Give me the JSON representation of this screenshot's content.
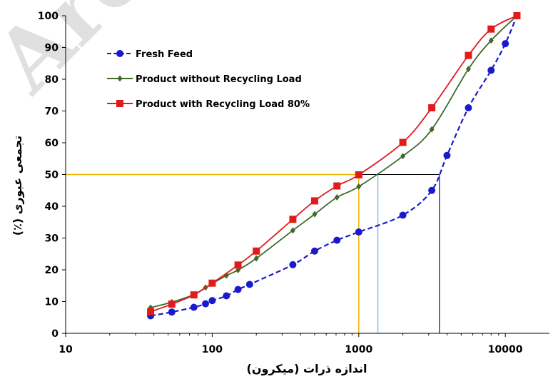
{
  "watermark": "Arc",
  "chart_data": {
    "type": "line",
    "title": "",
    "xlabel": "اندازه ذرات (میکرون)",
    "ylabel": "تجمعی عبوری (٪)",
    "x_scale": "log",
    "xlim": [
      10,
      20000
    ],
    "ylim": [
      0,
      100
    ],
    "x_ticks": [
      10,
      100,
      1000,
      10000
    ],
    "y_ticks": [
      0,
      10,
      20,
      30,
      40,
      50,
      60,
      70,
      80,
      90,
      100
    ],
    "legend_position": "top-left",
    "series": [
      {
        "name": "Fresh Feed",
        "color": "#1a1acc",
        "line_style": "dashed",
        "marker": "circle",
        "points": [
          [
            38,
            5.5
          ],
          [
            53,
            6.7
          ],
          [
            75,
            8.2
          ],
          [
            90,
            9.3
          ],
          [
            100,
            10.3
          ],
          [
            125,
            11.8
          ],
          [
            150,
            13.8
          ],
          [
            180,
            15.4
          ],
          [
            355,
            21.6
          ],
          [
            500,
            25.9
          ],
          [
            710,
            29.3
          ],
          [
            1000,
            31.9
          ],
          [
            2000,
            37.2
          ],
          [
            3150,
            45
          ],
          [
            4000,
            56
          ],
          [
            5600,
            71
          ],
          [
            8000,
            82.8
          ],
          [
            10000,
            91.2
          ],
          [
            12000,
            100
          ]
        ]
      },
      {
        "name": "Product without Recycling Load",
        "color": "#3e6a2a",
        "line_style": "solid",
        "marker": "diamond",
        "points": [
          [
            38,
            8.1
          ],
          [
            53,
            9.8
          ],
          [
            75,
            12.2
          ],
          [
            90,
            14.4
          ],
          [
            125,
            18.2
          ],
          [
            150,
            19.9
          ],
          [
            200,
            23.6
          ],
          [
            355,
            32.4
          ],
          [
            500,
            37.5
          ],
          [
            710,
            42.8
          ],
          [
            1000,
            46.2
          ],
          [
            2000,
            55.8
          ],
          [
            3150,
            64.2
          ],
          [
            5600,
            83.2
          ],
          [
            8000,
            92.2
          ],
          [
            12000,
            100
          ]
        ]
      },
      {
        "name": "Product with Recycling Load 80%",
        "color": "#e31a1a",
        "line_style": "solid",
        "marker": "square",
        "points": [
          [
            38,
            6.8
          ],
          [
            53,
            9.2
          ],
          [
            75,
            12.1
          ],
          [
            100,
            15.8
          ],
          [
            150,
            21.5
          ],
          [
            200,
            25.9
          ],
          [
            355,
            35.9
          ],
          [
            500,
            41.7
          ],
          [
            710,
            46.4
          ],
          [
            1000,
            49.9
          ],
          [
            2000,
            60.1
          ],
          [
            3150,
            71
          ],
          [
            5600,
            87.5
          ],
          [
            8000,
            95.8
          ],
          [
            12000,
            100
          ]
        ]
      }
    ],
    "reference_lines": [
      {
        "color": "#f0b400",
        "x": 1000,
        "y": 50,
        "horizontal_from_x": 10
      },
      {
        "color": "#8cc0e6",
        "x": 1350,
        "y": 50
      },
      {
        "color": "#3a3ab0",
        "x": 3550,
        "y": 50
      },
      {
        "color": "#000000",
        "x_from": 1000,
        "x_to": 3550,
        "y": 50
      }
    ]
  }
}
